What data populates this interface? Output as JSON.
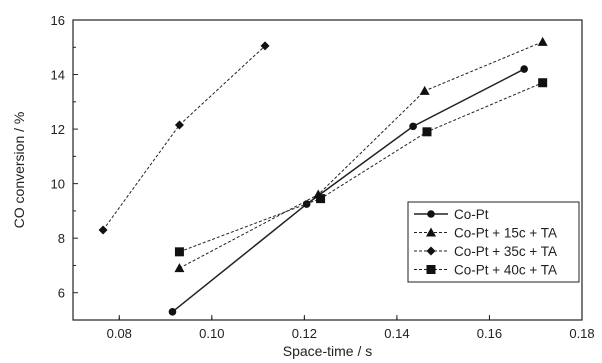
{
  "chart_data": {
    "type": "line",
    "xlabel": "Space-time / s",
    "ylabel": "CO conversion / %",
    "xlim": [
      0.07,
      0.18
    ],
    "ylim": [
      5,
      16
    ],
    "xticks": [
      0.08,
      0.1,
      0.12,
      0.14,
      0.16,
      0.18
    ],
    "xtick_labels": [
      "0.08",
      "0.10",
      "0.12",
      "0.14",
      "0.16",
      "0.18"
    ],
    "yticks": [
      6,
      8,
      10,
      12,
      14,
      16
    ],
    "ytick_labels": [
      "6",
      "8",
      "10",
      "12",
      "14",
      "16"
    ],
    "grid": false,
    "legend_position": "center-right",
    "series": [
      {
        "name": "Co-Pt",
        "marker": "circle",
        "line": "solid",
        "x": [
          0.0915,
          0.1205,
          0.1435,
          0.1675
        ],
        "y": [
          5.3,
          9.25,
          12.1,
          14.2
        ]
      },
      {
        "name": "Co-Pt + 15c + TA",
        "marker": "triangle",
        "line": "dashed",
        "x": [
          0.093,
          0.123,
          0.146,
          0.1715
        ],
        "y": [
          6.9,
          9.6,
          13.4,
          15.2
        ]
      },
      {
        "name": "Co-Pt + 35c + TA",
        "marker": "diamond",
        "line": "dashed",
        "x": [
          0.0765,
          0.093,
          0.1115
        ],
        "y": [
          8.3,
          12.15,
          15.05
        ]
      },
      {
        "name": "Co-Pt + 40c + TA",
        "marker": "square",
        "line": "dashed",
        "x": [
          0.093,
          0.1235,
          0.1465,
          0.1715
        ],
        "y": [
          7.5,
          9.45,
          11.9,
          13.7
        ]
      }
    ]
  }
}
